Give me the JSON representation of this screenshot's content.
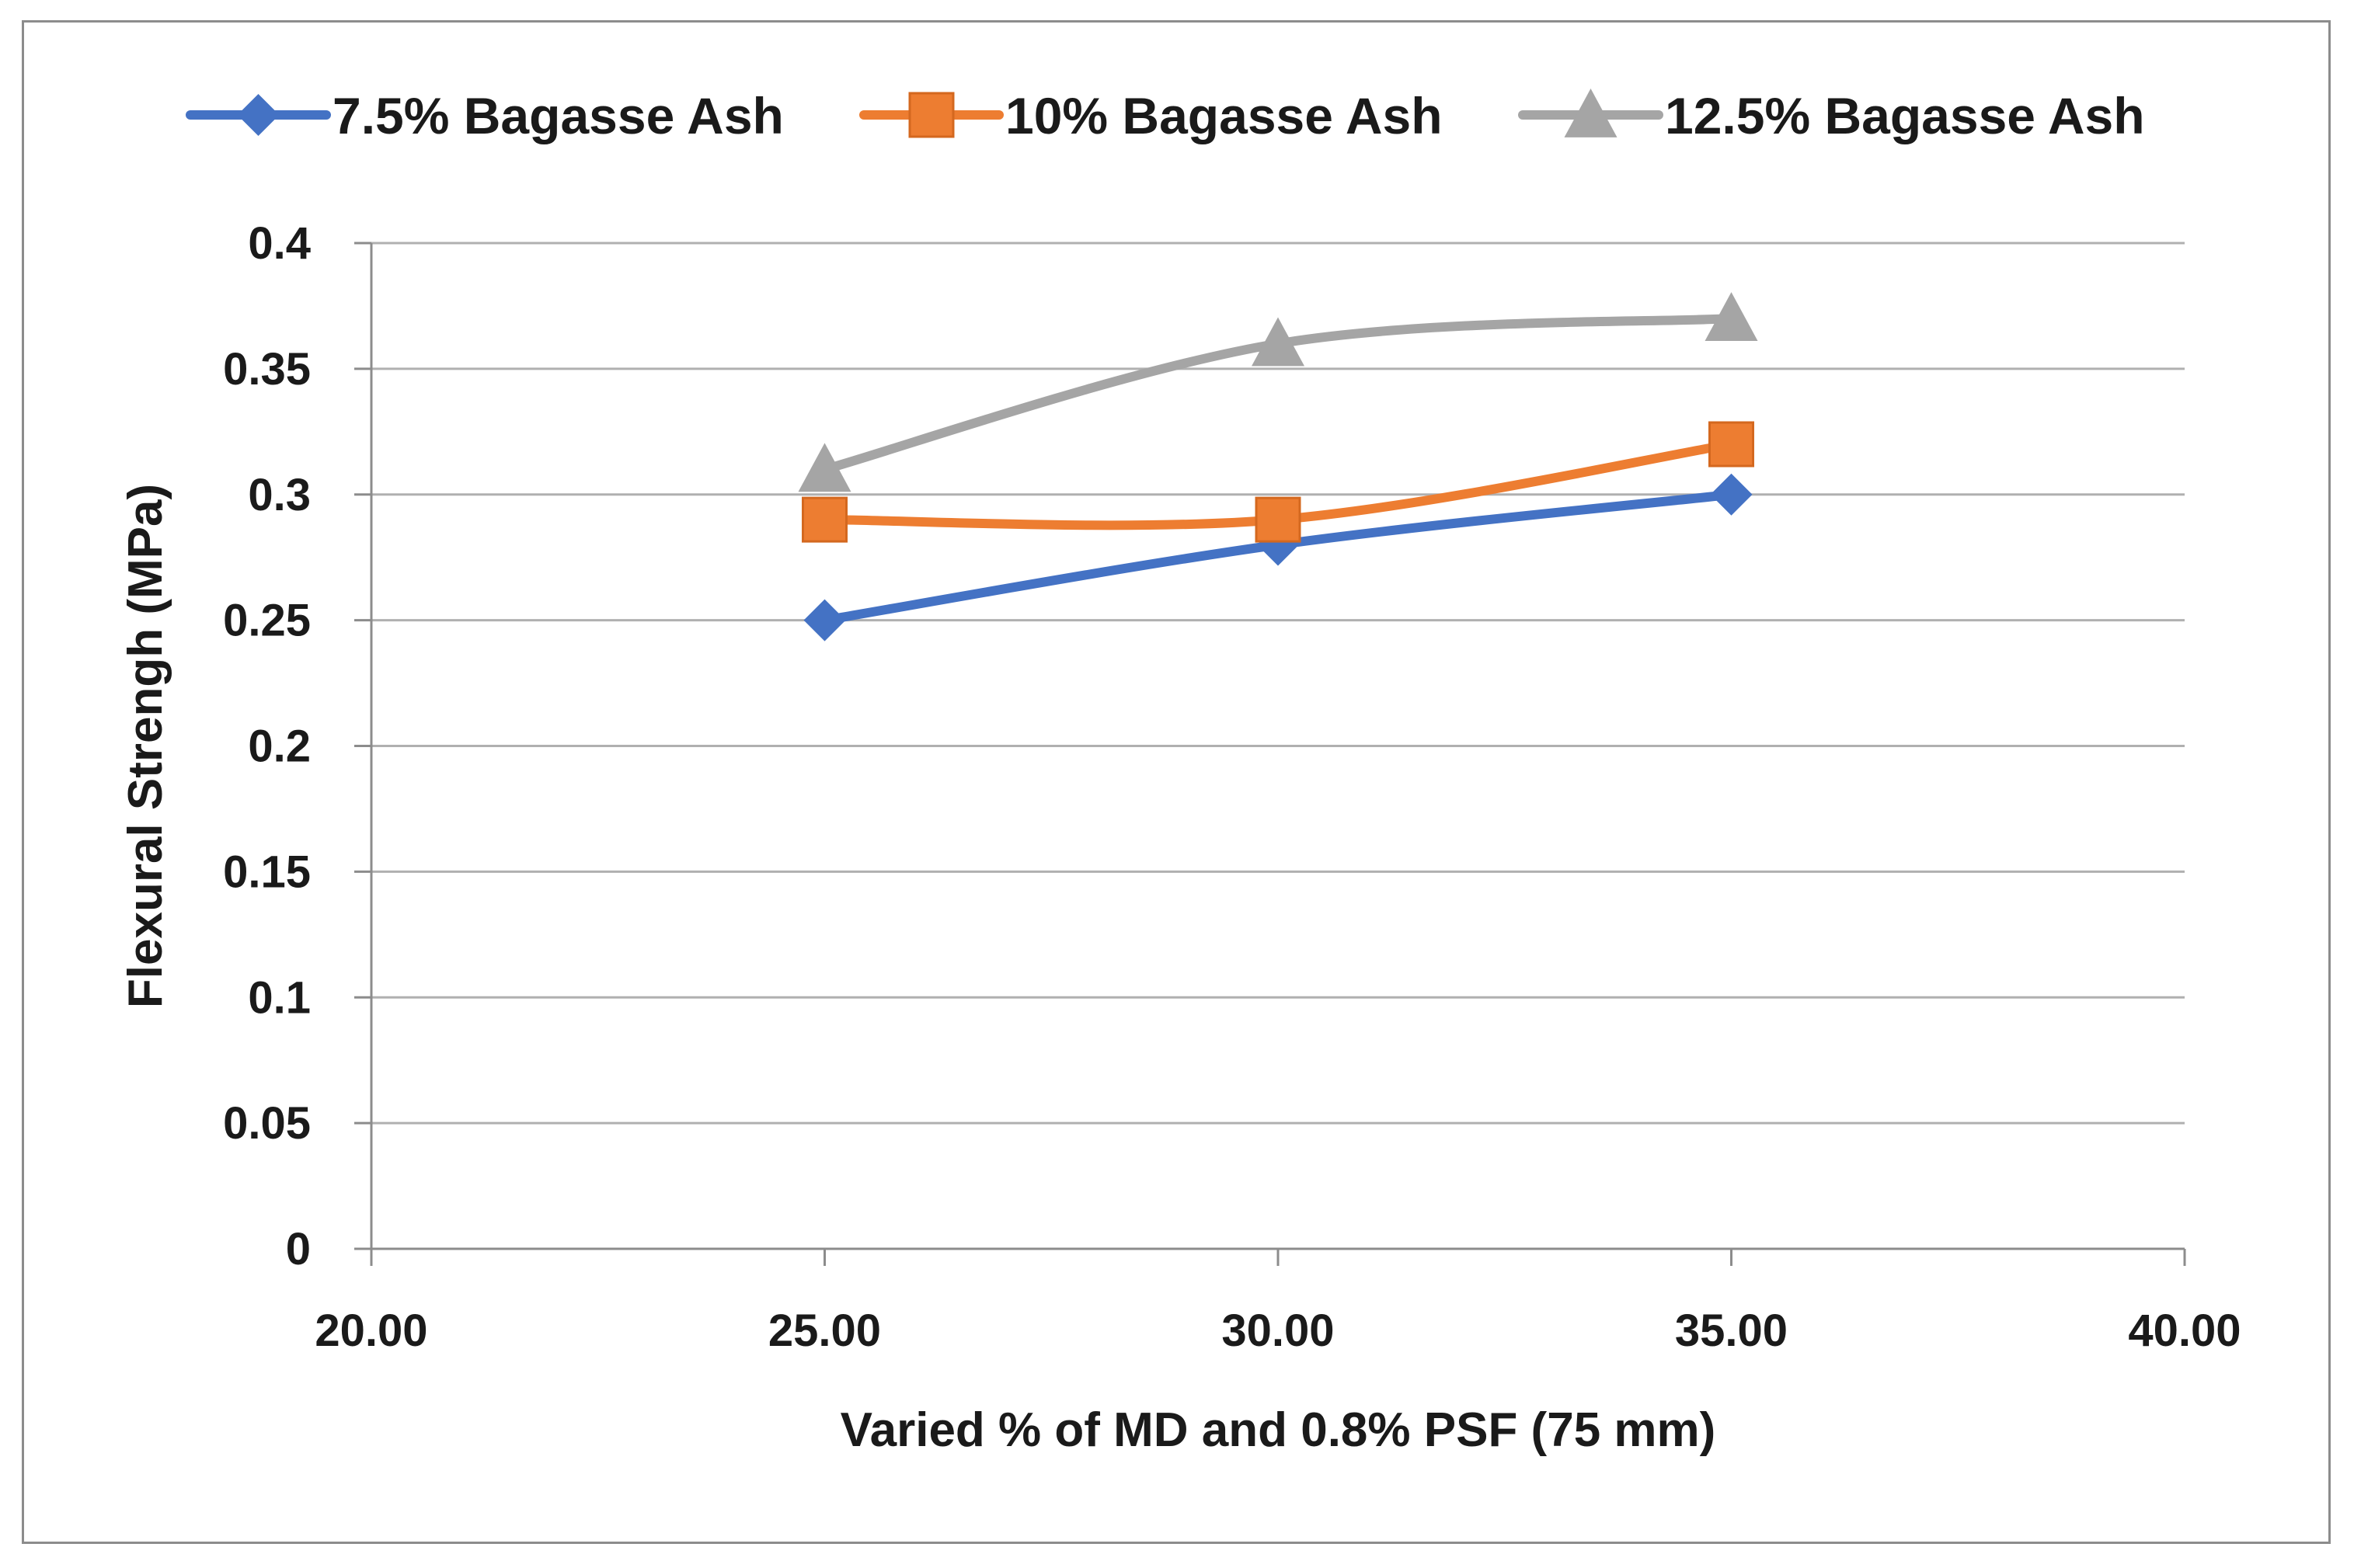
{
  "chart_data": {
    "type": "line",
    "title": "",
    "xlabel": "Varied % of MD and 0.8% PSF (75 mm)",
    "ylabel": "Flexural Strengh (MPa)",
    "xlim": [
      20,
      40
    ],
    "ylim": [
      0,
      0.4
    ],
    "x_ticks": [
      20,
      25,
      30,
      35,
      40
    ],
    "x_tick_labels": [
      "20.00",
      "25.00",
      "30.00",
      "35.00",
      "40.00"
    ],
    "y_ticks": [
      0,
      0.05,
      0.1,
      0.15,
      0.2,
      0.25,
      0.3,
      0.35,
      0.4
    ],
    "y_tick_labels": [
      "0",
      "0.05",
      "0.1",
      "0.15",
      "0.2",
      "0.25",
      "0.3",
      "0.35",
      "0.4"
    ],
    "grid": "horizontal",
    "legend_position": "top",
    "series": [
      {
        "name": "7.5% Bagasse Ash",
        "color": "#4472c4",
        "marker": "diamond",
        "x": [
          25,
          30,
          35
        ],
        "values": [
          0.25,
          0.28,
          0.3
        ]
      },
      {
        "name": "10% Bagasse Ash",
        "color": "#ed7d31",
        "marker": "square",
        "x": [
          25,
          30,
          35
        ],
        "values": [
          0.29,
          0.29,
          0.32
        ]
      },
      {
        "name": "12.5% Bagasse Ash",
        "color": "#a5a5a5",
        "marker": "triangle",
        "x": [
          25,
          30,
          35
        ],
        "values": [
          0.31,
          0.36,
          0.37
        ]
      }
    ]
  }
}
